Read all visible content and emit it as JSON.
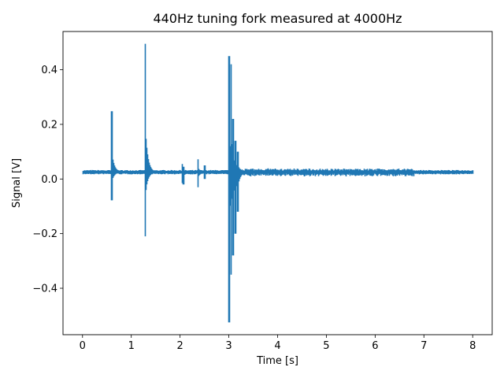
{
  "chart_data": {
    "type": "line",
    "title": "440Hz tuning fork measured at 4000Hz",
    "xlabel": "Time [s]",
    "ylabel": "Signal [V]",
    "xlim": [
      -0.4,
      8.4
    ],
    "ylim": [
      -0.57,
      0.54
    ],
    "xticks": [
      0,
      1,
      2,
      3,
      4,
      5,
      6,
      7,
      8
    ],
    "xtick_labels": [
      "0",
      "1",
      "2",
      "3",
      "4",
      "5",
      "6",
      "7",
      "8"
    ],
    "yticks": [
      -0.4,
      -0.2,
      0.0,
      0.2,
      0.4
    ],
    "ytick_labels": [
      "−0.4",
      "−0.2",
      "0.0",
      "0.2",
      "0.4"
    ],
    "grid": false,
    "series_color": "#1f77b4",
    "series": [
      {
        "sample_rate_hz": 4000,
        "duration_s": 8,
        "baseline_v": 0.025,
        "noise_amplitude_v": 0.008,
        "events": [
          {
            "t": 0.59,
            "max": 0.248,
            "min": -0.078
          },
          {
            "t": 1.28,
            "max": 0.495,
            "min": -0.21
          },
          {
            "t": 1.29,
            "max": 0.14,
            "min": -0.04
          },
          {
            "t": 2.04,
            "max": 0.055,
            "min": -0.015
          },
          {
            "t": 2.06,
            "max": 0.045,
            "min": -0.02
          },
          {
            "t": 2.36,
            "max": 0.072,
            "min": -0.03
          },
          {
            "t": 2.5,
            "max": 0.05,
            "min": 0.0
          },
          {
            "t": 3.0,
            "max": 0.45,
            "min": -0.525
          },
          {
            "t": 3.04,
            "max": 0.42,
            "min": -0.35
          },
          {
            "t": 3.08,
            "max": 0.22,
            "min": -0.28
          },
          {
            "t": 3.13,
            "max": 0.14,
            "min": -0.2
          },
          {
            "t": 3.18,
            "max": 0.1,
            "min": -0.12
          }
        ]
      }
    ]
  }
}
